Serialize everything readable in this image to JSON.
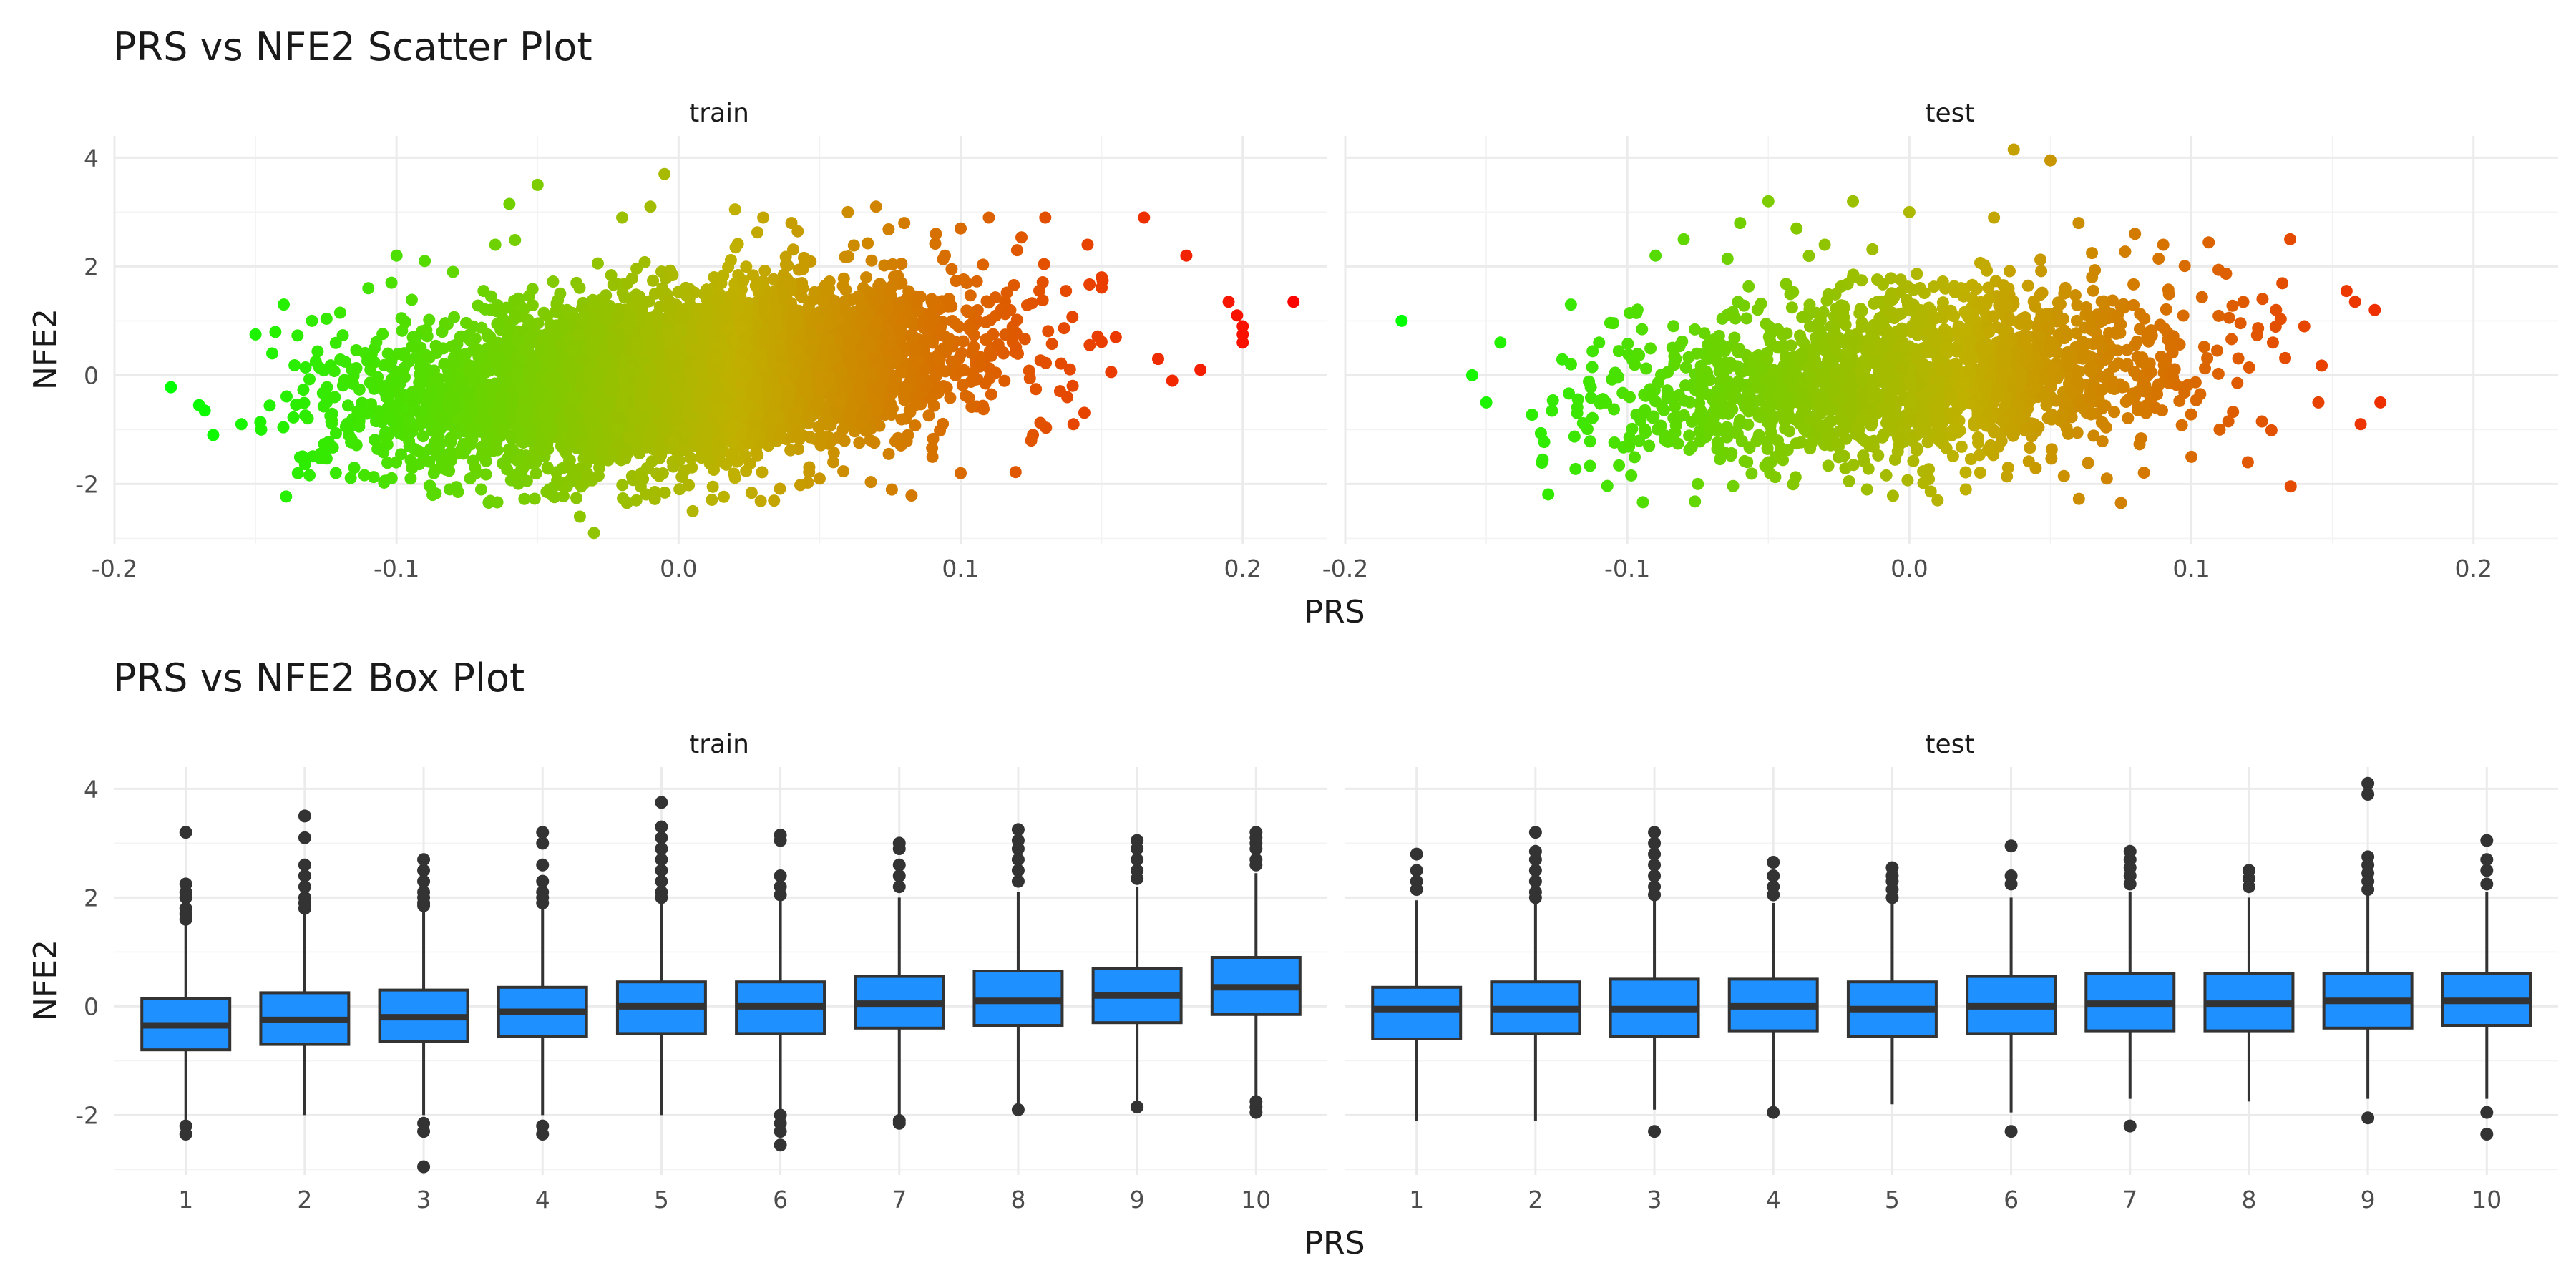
{
  "chart_data": [
    {
      "type": "scatter",
      "title": "PRS vs NFE2 Scatter Plot",
      "xlabel": "PRS",
      "ylabel": "NFE2",
      "xlim": [
        -0.2,
        0.23
      ],
      "ylim": [
        -3.1,
        4.4
      ],
      "x_ticks": [
        -0.2,
        -0.1,
        0.0,
        0.1,
        0.2
      ],
      "x_tick_labels": [
        "-0.2",
        "-0.1",
        "0.0",
        "0.1",
        "0.2"
      ],
      "y_ticks": [
        -2,
        0,
        2,
        4
      ],
      "y_tick_labels": [
        "-2",
        "0",
        "2",
        "4"
      ],
      "grid": true,
      "color_scale": {
        "low": "#00ff00",
        "mid": "#c0b000",
        "high": "#ff0000",
        "domain": [
          -0.18,
          0.22
        ]
      },
      "panels": [
        {
          "label": "train",
          "points": [
            [
              -0.18,
              -0.22
            ],
            [
              -0.17,
              -0.55
            ],
            [
              -0.168,
              -0.65
            ],
            [
              -0.165,
              -1.1
            ],
            [
              -0.155,
              -0.9
            ],
            [
              -0.15,
              0.75
            ],
            [
              -0.148,
              -1.0
            ],
            [
              -0.14,
              1.3
            ],
            [
              -0.135,
              -1.8
            ],
            [
              -0.13,
              1.0
            ],
            [
              -0.12,
              1.15
            ],
            [
              -0.115,
              -1.7
            ],
            [
              -0.11,
              1.6
            ],
            [
              -0.1,
              2.2
            ],
            [
              -0.095,
              -1.9
            ],
            [
              -0.09,
              2.1
            ],
            [
              -0.08,
              1.9
            ],
            [
              -0.07,
              -2.1
            ],
            [
              -0.065,
              2.4
            ],
            [
              -0.06,
              3.15
            ],
            [
              -0.05,
              3.5
            ],
            [
              -0.045,
              -2.2
            ],
            [
              -0.035,
              -2.6
            ],
            [
              -0.03,
              -2.9
            ],
            [
              -0.02,
              2.9
            ],
            [
              -0.015,
              -2.3
            ],
            [
              -0.01,
              3.1
            ],
            [
              -0.005,
              3.7
            ],
            [
              0.005,
              -2.5
            ],
            [
              0.02,
              3.05
            ],
            [
              0.03,
              2.9
            ],
            [
              0.04,
              2.8
            ],
            [
              0.05,
              -1.9
            ],
            [
              0.06,
              3.0
            ],
            [
              0.07,
              3.1
            ],
            [
              0.08,
              2.8
            ],
            [
              0.09,
              -1.5
            ],
            [
              0.1,
              -1.8
            ],
            [
              0.1,
              2.7
            ],
            [
              0.11,
              2.9
            ],
            [
              0.12,
              2.3
            ],
            [
              0.125,
              -1.2
            ],
            [
              0.13,
              2.9
            ],
            [
              0.14,
              -0.9
            ],
            [
              0.145,
              2.4
            ],
            [
              0.15,
              1.8
            ],
            [
              0.155,
              0.7
            ],
            [
              0.165,
              2.9
            ],
            [
              0.17,
              0.3
            ],
            [
              0.175,
              -0.1
            ],
            [
              0.18,
              2.2
            ],
            [
              0.185,
              0.1
            ],
            [
              0.195,
              1.35
            ],
            [
              0.198,
              1.1
            ],
            [
              0.2,
              0.9
            ],
            [
              0.2,
              0.6
            ],
            [
              0.2,
              0.75
            ],
            [
              0.218,
              1.35
            ]
          ],
          "cloud": {
            "n": 5200,
            "mean_x": 0.0,
            "sd_x": 0.05,
            "corr": 0.3,
            "sd_y": 0.8,
            "x_range": [
              -0.15,
              0.16
            ]
          }
        },
        {
          "label": "test",
          "points": [
            [
              -0.18,
              1.0
            ],
            [
              -0.155,
              0.0
            ],
            [
              -0.15,
              -0.5
            ],
            [
              -0.145,
              0.6
            ],
            [
              -0.13,
              -1.55
            ],
            [
              -0.12,
              1.3
            ],
            [
              -0.11,
              0.6
            ],
            [
              -0.09,
              2.2
            ],
            [
              -0.08,
              2.5
            ],
            [
              -0.075,
              -2.0
            ],
            [
              -0.06,
              2.8
            ],
            [
              -0.05,
              3.2
            ],
            [
              -0.05,
              -1.6
            ],
            [
              -0.04,
              2.7
            ],
            [
              -0.03,
              2.4
            ],
            [
              -0.02,
              3.2
            ],
            [
              -0.015,
              -2.1
            ],
            [
              0.0,
              3.0
            ],
            [
              0.01,
              -2.3
            ],
            [
              0.02,
              -2.1
            ],
            [
              0.03,
              2.9
            ],
            [
              0.035,
              -1.7
            ],
            [
              0.037,
              4.15
            ],
            [
              0.05,
              3.95
            ],
            [
              0.06,
              2.8
            ],
            [
              0.07,
              -1.9
            ],
            [
              0.075,
              -2.35
            ],
            [
              0.08,
              2.6
            ],
            [
              0.09,
              2.4
            ],
            [
              0.1,
              -1.5
            ],
            [
              0.11,
              -1.0
            ],
            [
              0.12,
              -1.6
            ],
            [
              0.125,
              -0.85
            ],
            [
              0.13,
              1.2
            ],
            [
              0.135,
              2.5
            ],
            [
              0.14,
              0.9
            ],
            [
              0.145,
              -0.5
            ],
            [
              0.155,
              1.55
            ],
            [
              0.158,
              1.35
            ],
            [
              0.16,
              -0.9
            ],
            [
              0.165,
              1.2
            ],
            [
              0.167,
              -0.5
            ]
          ],
          "cloud": {
            "n": 1900,
            "mean_x": 0.0,
            "sd_x": 0.05,
            "corr": 0.25,
            "sd_y": 0.8,
            "x_range": [
              -0.14,
              0.15
            ]
          }
        }
      ]
    },
    {
      "type": "box",
      "title": "PRS vs NFE2 Box Plot",
      "xlabel": "PRS",
      "ylabel": "NFE2",
      "ylim": [
        -3.1,
        4.4
      ],
      "categories": [
        "1",
        "2",
        "3",
        "4",
        "5",
        "6",
        "7",
        "8",
        "9",
        "10"
      ],
      "y_ticks": [
        -2,
        0,
        2,
        4
      ],
      "y_tick_labels": [
        "-2",
        "0",
        "2",
        "4"
      ],
      "grid": true,
      "box_color": "#1e90ff",
      "panels": [
        {
          "label": "train",
          "boxes": [
            {
              "category": "1",
              "lower": -2.1,
              "q1": -0.8,
              "median": -0.35,
              "q3": 0.15,
              "upper": 1.5,
              "outliers": [
                3.2,
                2.25,
                2.1,
                2.0,
                1.8,
                1.7,
                1.6,
                -2.2,
                -2.35
              ]
            },
            {
              "category": "2",
              "lower": -2.0,
              "q1": -0.7,
              "median": -0.25,
              "q3": 0.25,
              "upper": 1.7,
              "outliers": [
                3.5,
                3.1,
                2.6,
                2.4,
                2.2,
                2.0,
                1.9,
                1.8
              ]
            },
            {
              "category": "3",
              "lower": -2.0,
              "q1": -0.65,
              "median": -0.2,
              "q3": 0.3,
              "upper": 1.75,
              "outliers": [
                2.7,
                2.5,
                2.3,
                2.1,
                2.0,
                1.9,
                1.85,
                -2.15,
                -2.3,
                -2.95
              ]
            },
            {
              "category": "4",
              "lower": -2.0,
              "q1": -0.55,
              "median": -0.1,
              "q3": 0.35,
              "upper": 1.8,
              "outliers": [
                3.2,
                3.0,
                2.6,
                2.3,
                2.1,
                2.0,
                1.9,
                -2.2,
                -2.35
              ]
            },
            {
              "category": "5",
              "lower": -2.0,
              "q1": -0.5,
              "median": 0.0,
              "q3": 0.45,
              "upper": 1.9,
              "outliers": [
                3.75,
                3.3,
                3.1,
                2.9,
                2.7,
                2.5,
                2.3,
                2.1,
                2.0
              ]
            },
            {
              "category": "6",
              "lower": -1.9,
              "q1": -0.5,
              "median": 0.0,
              "q3": 0.45,
              "upper": 1.95,
              "outliers": [
                3.15,
                3.05,
                2.4,
                2.2,
                2.05,
                -2.0,
                -2.15,
                -2.3,
                -2.55
              ]
            },
            {
              "category": "7",
              "lower": -2.0,
              "q1": -0.4,
              "median": 0.05,
              "q3": 0.55,
              "upper": 2.0,
              "outliers": [
                3.0,
                2.9,
                2.6,
                2.4,
                2.2,
                -2.1,
                -2.15
              ]
            },
            {
              "category": "8",
              "lower": -1.9,
              "q1": -0.35,
              "median": 0.1,
              "q3": 0.65,
              "upper": 2.1,
              "outliers": [
                3.25,
                3.05,
                2.9,
                2.7,
                2.5,
                2.3,
                -1.9
              ]
            },
            {
              "category": "9",
              "lower": -1.85,
              "q1": -0.3,
              "median": 0.2,
              "q3": 0.7,
              "upper": 2.2,
              "outliers": [
                3.05,
                2.9,
                2.7,
                2.5,
                2.35,
                -1.85
              ]
            },
            {
              "category": "10",
              "lower": -1.7,
              "q1": -0.15,
              "median": 0.35,
              "q3": 0.9,
              "upper": 2.45,
              "outliers": [
                3.2,
                3.1,
                3.0,
                2.9,
                2.7,
                2.6,
                -1.75,
                -1.85,
                -1.95
              ]
            }
          ]
        },
        {
          "label": "test",
          "boxes": [
            {
              "category": "1",
              "lower": -2.1,
              "q1": -0.6,
              "median": -0.05,
              "q3": 0.35,
              "upper": 1.95,
              "outliers": [
                2.8,
                2.5,
                2.3,
                2.15
              ]
            },
            {
              "category": "2",
              "lower": -2.1,
              "q1": -0.5,
              "median": -0.05,
              "q3": 0.45,
              "upper": 1.95,
              "outliers": [
                3.2,
                2.85,
                2.7,
                2.5,
                2.3,
                2.1,
                2.0
              ]
            },
            {
              "category": "3",
              "lower": -1.9,
              "q1": -0.55,
              "median": -0.05,
              "q3": 0.5,
              "upper": 2.0,
              "outliers": [
                3.2,
                3.0,
                2.8,
                2.6,
                2.4,
                2.2,
                2.05,
                -2.3
              ]
            },
            {
              "category": "4",
              "lower": -1.95,
              "q1": -0.45,
              "median": 0.0,
              "q3": 0.5,
              "upper": 1.9,
              "outliers": [
                2.65,
                2.4,
                2.2,
                2.05,
                -1.95
              ]
            },
            {
              "category": "5",
              "lower": -1.8,
              "q1": -0.55,
              "median": -0.05,
              "q3": 0.45,
              "upper": 1.95,
              "outliers": [
                2.55,
                2.4,
                2.3,
                2.15,
                2.0
              ]
            },
            {
              "category": "6",
              "lower": -1.95,
              "q1": -0.5,
              "median": 0.0,
              "q3": 0.55,
              "upper": 2.0,
              "outliers": [
                2.95,
                2.4,
                2.25,
                -2.3
              ]
            },
            {
              "category": "7",
              "lower": -1.7,
              "q1": -0.45,
              "median": 0.05,
              "q3": 0.6,
              "upper": 2.1,
              "outliers": [
                2.85,
                2.7,
                2.55,
                2.4,
                2.25,
                -2.2
              ]
            },
            {
              "category": "8",
              "lower": -1.75,
              "q1": -0.45,
              "median": 0.05,
              "q3": 0.6,
              "upper": 2.0,
              "outliers": [
                2.5,
                2.35,
                2.2
              ]
            },
            {
              "category": "9",
              "lower": -1.7,
              "q1": -0.4,
              "median": 0.1,
              "q3": 0.6,
              "upper": 2.1,
              "outliers": [
                4.1,
                3.9,
                2.75,
                2.6,
                2.45,
                2.3,
                2.15,
                -2.05
              ]
            },
            {
              "category": "10",
              "lower": -1.7,
              "q1": -0.35,
              "median": 0.1,
              "q3": 0.6,
              "upper": 2.1,
              "outliers": [
                3.05,
                2.7,
                2.5,
                2.25,
                -1.95,
                -2.35
              ]
            }
          ]
        }
      ]
    }
  ]
}
